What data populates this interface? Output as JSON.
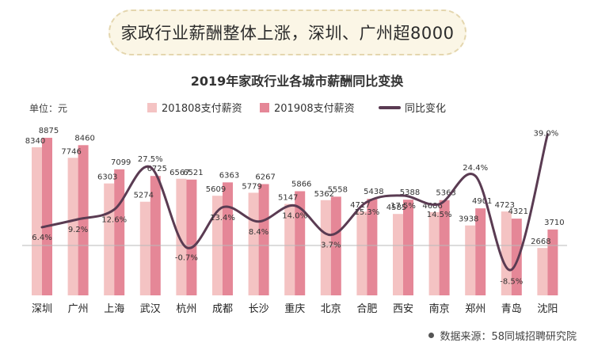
{
  "banner": {
    "text": "家政行业薪酬整体上涨，深圳、广州超8000"
  },
  "chart_data": {
    "type": "bar",
    "title": "2019年家政行业各城市薪酬同比变换",
    "unit_label": "单位：元",
    "categories": [
      "深圳",
      "广州",
      "上海",
      "武汉",
      "杭州",
      "成都",
      "长沙",
      "重庆",
      "北京",
      "合肥",
      "西安",
      "南京",
      "郑州",
      "青岛",
      "沈阳"
    ],
    "series": [
      {
        "name": "201808支付薪资",
        "kind": "bar",
        "color": "#f4c3c3",
        "values": [
          8340,
          7746,
          6303,
          5274,
          6567,
          5609,
          5779,
          5147,
          5362,
          4717,
          4585,
          4686,
          3938,
          4723,
          2668
        ]
      },
      {
        "name": "201908支付薪资",
        "kind": "bar",
        "color": "#e58797",
        "values": [
          8875,
          8460,
          7099,
          6725,
          6521,
          6363,
          6267,
          5866,
          5558,
          5438,
          5388,
          5363,
          4901,
          4321,
          3710
        ]
      },
      {
        "name": "同比变化",
        "kind": "line",
        "color": "#5a3b52",
        "values": [
          6.4,
          9.2,
          12.6,
          27.5,
          -0.7,
          13.4,
          8.4,
          14.0,
          3.7,
          15.3,
          17.5,
          14.5,
          24.4,
          -8.5,
          39.0
        ],
        "labels": [
          "6.4%",
          "9.2%",
          "12.6%",
          "27.5%",
          "-0.7%",
          "13.4%",
          "8.4%",
          "14.0%",
          "3.7%",
          "15.3%",
          "17.5%",
          "14.5%",
          "24.4%",
          "-8.5%",
          "39.0%"
        ]
      }
    ],
    "legend_position": "top",
    "grid": false
  },
  "source": {
    "text": "数据来源：58同城招聘研究院"
  }
}
